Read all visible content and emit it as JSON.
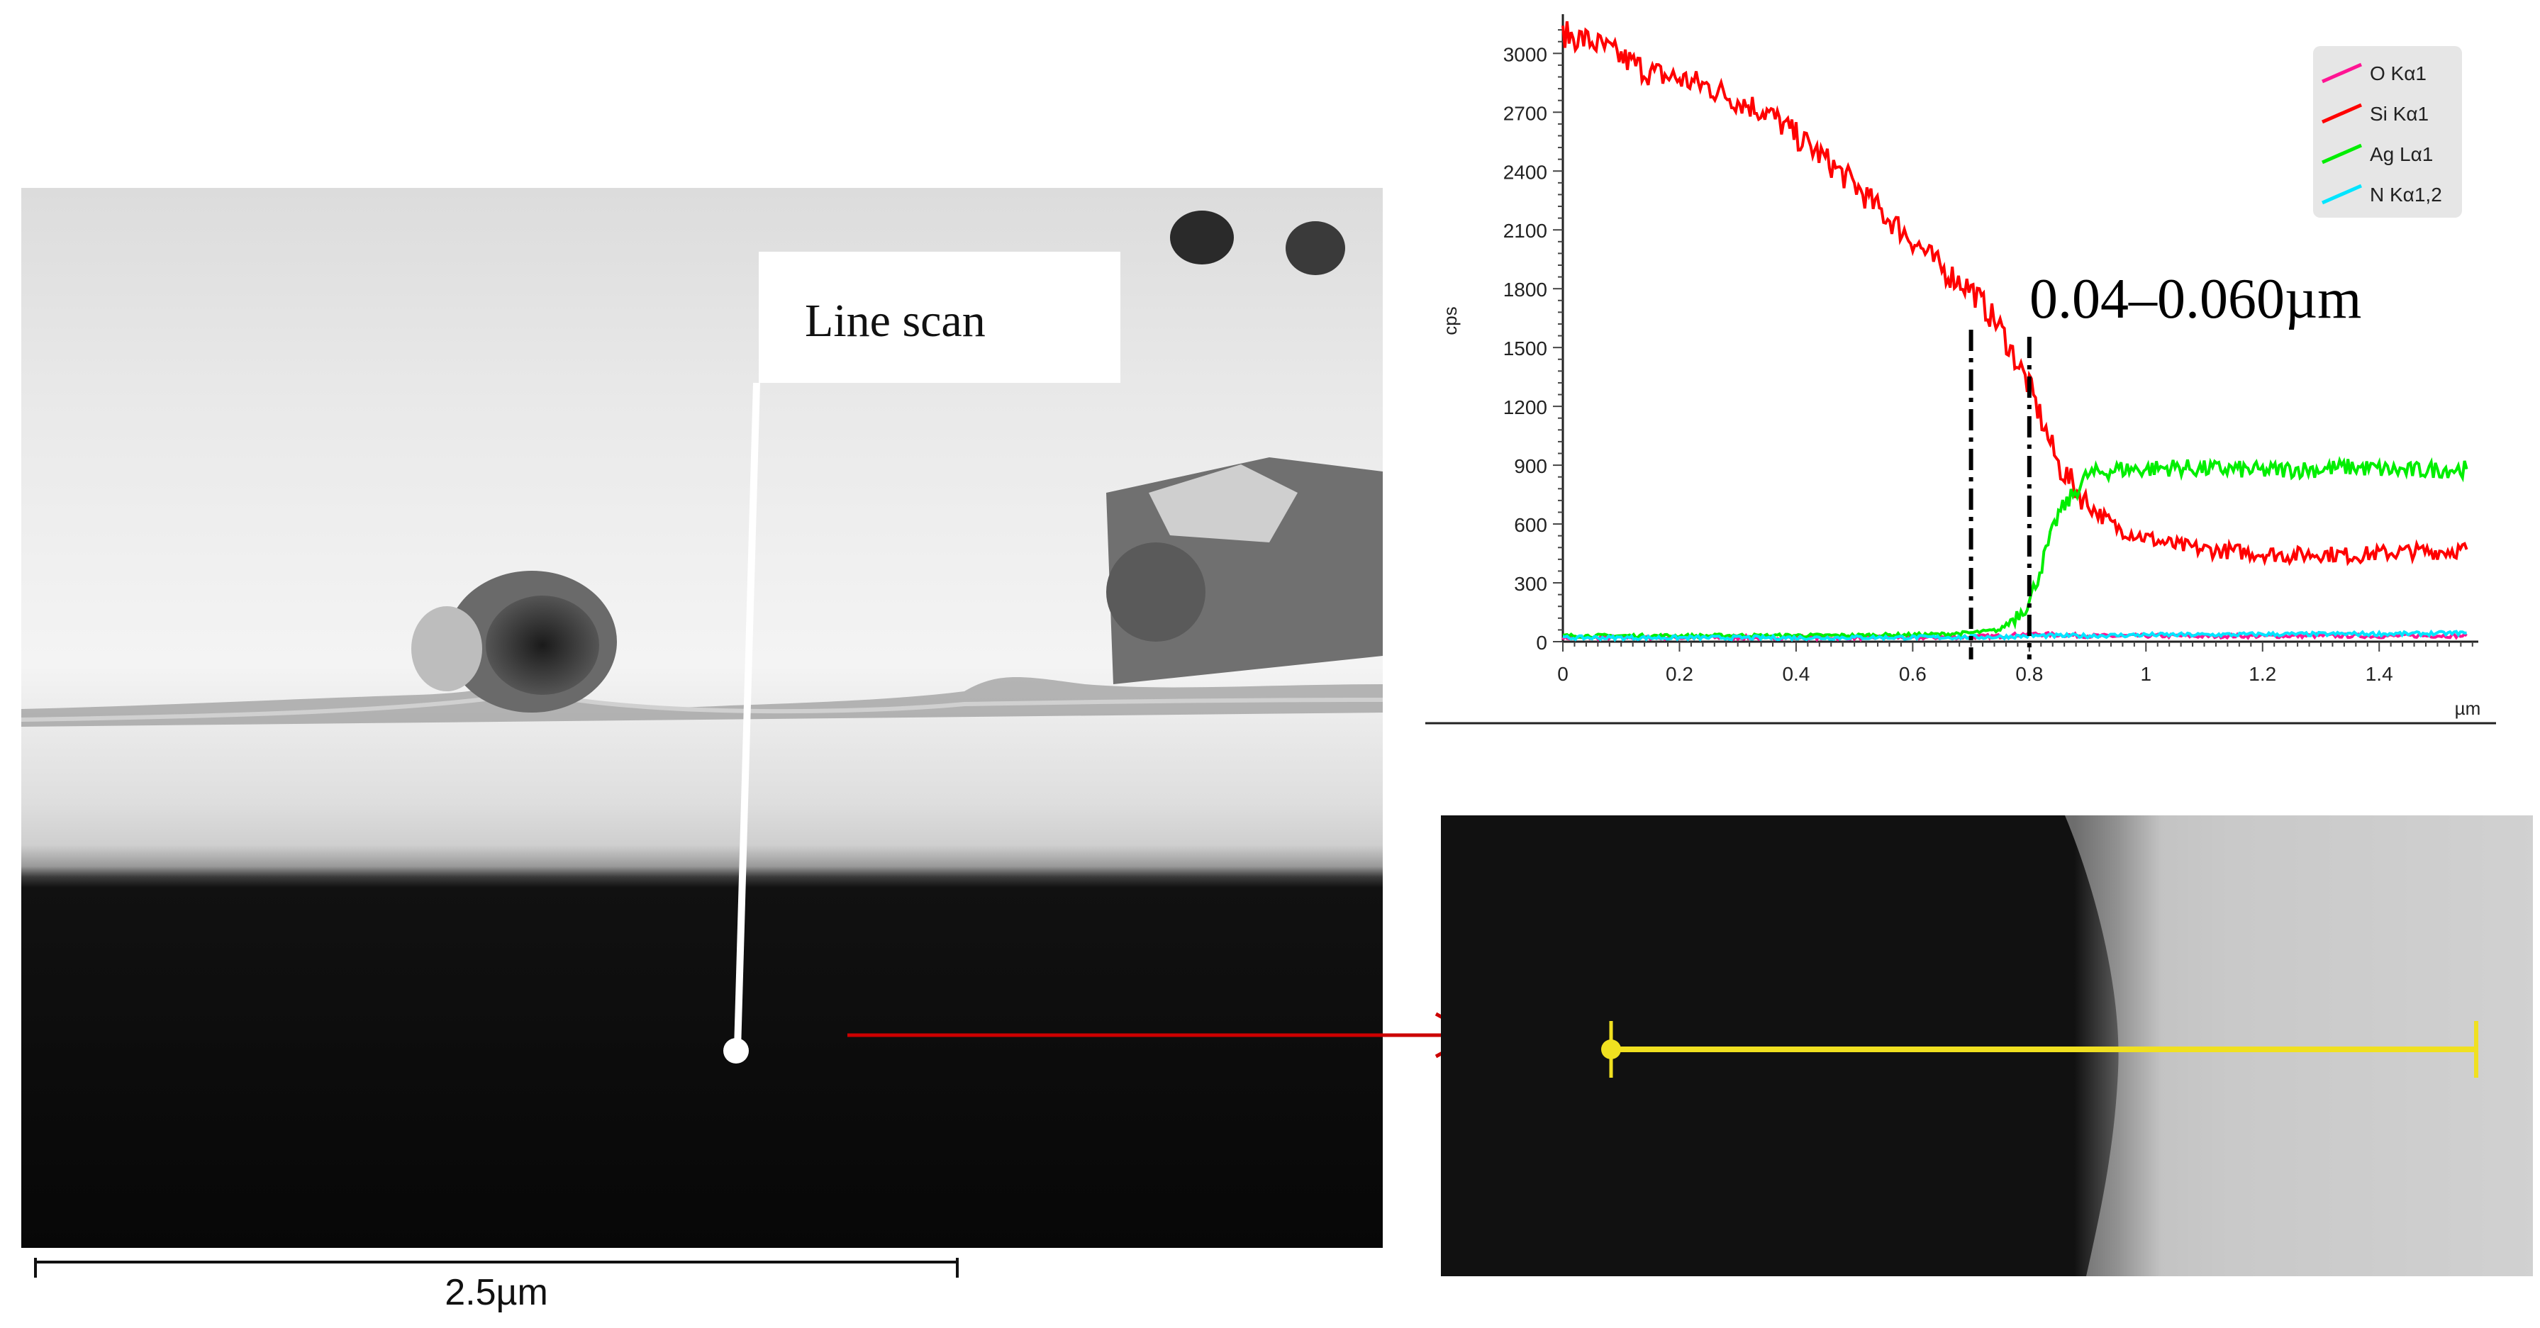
{
  "left_image": {
    "label": "Line scan",
    "scale_bar": "2.5µm"
  },
  "chart_data": {
    "type": "line",
    "title": "",
    "xlabel": "µm",
    "ylabel": "cps",
    "xlim": [
      0,
      1.57
    ],
    "ylim": [
      0,
      3200
    ],
    "x_ticks": [
      "0",
      "0.2",
      "0.4",
      "0.6",
      "0.8",
      "1",
      "1.2",
      "1.4"
    ],
    "y_ticks": [
      "0",
      "300",
      "600",
      "900",
      "1200",
      "1500",
      "1800",
      "2100",
      "2400",
      "2700",
      "3000"
    ],
    "legend_position": "top-right",
    "annotation": "0.04–0.060µm",
    "marker_lines_x": [
      0.7,
      0.8
    ],
    "x": [
      0,
      0.05,
      0.1,
      0.15,
      0.2,
      0.25,
      0.3,
      0.35,
      0.4,
      0.45,
      0.5,
      0.55,
      0.6,
      0.65,
      0.7,
      0.75,
      0.8,
      0.85,
      0.9,
      0.95,
      1.0,
      1.05,
      1.1,
      1.15,
      1.2,
      1.25,
      1.3,
      1.35,
      1.4,
      1.45,
      1.5,
      1.55
    ],
    "series": [
      {
        "name": "O Kα1",
        "color": "#ff1493",
        "values": [
          20,
          20,
          22,
          21,
          20,
          22,
          21,
          20,
          22,
          21,
          20,
          22,
          21,
          22,
          25,
          28,
          40,
          35,
          30,
          28,
          30,
          30,
          28,
          30,
          29,
          30,
          31,
          30,
          29,
          30,
          31,
          30
        ]
      },
      {
        "name": "Si Kα1",
        "color": "#ff0000",
        "values": [
          3100,
          3060,
          2980,
          2900,
          2870,
          2830,
          2760,
          2700,
          2580,
          2460,
          2330,
          2180,
          2050,
          1900,
          1800,
          1600,
          1300,
          900,
          700,
          580,
          530,
          490,
          470,
          460,
          450,
          440,
          450,
          440,
          450,
          460,
          460,
          470
        ]
      },
      {
        "name": "Ag Lα1",
        "color": "#00ee00",
        "values": [
          30,
          30,
          30,
          30,
          30,
          30,
          32,
          30,
          32,
          31,
          32,
          34,
          35,
          38,
          45,
          60,
          200,
          650,
          850,
          880,
          880,
          890,
          880,
          880,
          870,
          880,
          880,
          890,
          880,
          870,
          880,
          880
        ]
      },
      {
        "name": "N Kα1,2",
        "color": "#00e5ff",
        "values": [
          20,
          20,
          20,
          20,
          20,
          20,
          20,
          20,
          20,
          20,
          22,
          21,
          22,
          22,
          23,
          24,
          30,
          30,
          30,
          32,
          35,
          35,
          35,
          36,
          38,
          38,
          38,
          40,
          40,
          40,
          42,
          45
        ]
      }
    ]
  }
}
